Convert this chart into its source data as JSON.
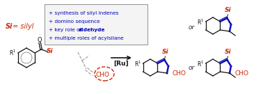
{
  "background_color": "#ffffff",
  "box_text_lines": [
    {
      "text": "+ synthesis of silyl indenes",
      "bold_word": null
    },
    {
      "text": "+ domino sequence",
      "bold_word": null
    },
    {
      "text": "+ key role of aldehyde",
      "bold_word": "aldehyde"
    },
    {
      "text": "+ multiple roles of acylsilane",
      "bold_word": null
    }
  ],
  "si_label_color": "#cc2200",
  "bullet_color": "#0000bb",
  "arrow_color": "#333333",
  "cho_color": "#cc2200",
  "blue_bond_color": "#1111bb",
  "dashed_circle_color": "#cc2200",
  "gray_bond_color": "#999999",
  "black": "#111111",
  "or_italic_color": "#333333"
}
